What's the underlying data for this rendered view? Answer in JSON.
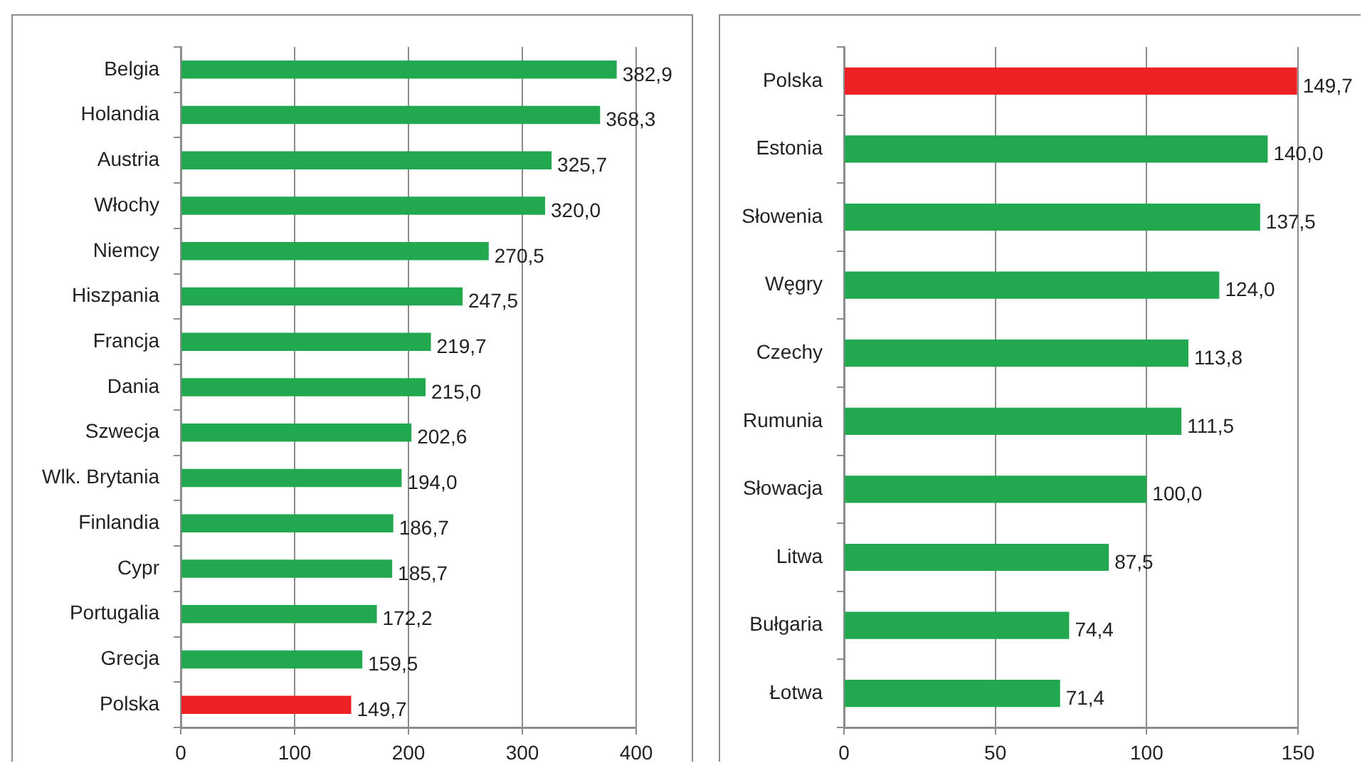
{
  "chart_data": [
    {
      "type": "bar",
      "orientation": "horizontal",
      "categories": [
        "Belgia",
        "Holandia",
        "Austria",
        "Włochy",
        "Niemcy",
        "Hiszpania",
        "Francja",
        "Dania",
        "Szwecja",
        "Wlk. Brytania",
        "Finlandia",
        "Cypr",
        "Portugalia",
        "Grecja",
        "Polska"
      ],
      "values": [
        382.9,
        368.3,
        325.7,
        320.0,
        270.5,
        247.5,
        219.7,
        215.0,
        202.6,
        194.0,
        186.7,
        185.7,
        172.2,
        159.5,
        149.7
      ],
      "colors": [
        "#22a84f",
        "#22a84f",
        "#22a84f",
        "#22a84f",
        "#22a84f",
        "#22a84f",
        "#22a84f",
        "#22a84f",
        "#22a84f",
        "#22a84f",
        "#22a84f",
        "#22a84f",
        "#22a84f",
        "#22a84f",
        "#ed2124"
      ],
      "value_labels": [
        "382,9",
        "368,3",
        "325,7",
        "320,0",
        "270,5",
        "247,5",
        "219,7",
        "215,0",
        "202,6",
        "194,0",
        "186,7",
        "185,7",
        "172,2",
        "159,5",
        "149,7"
      ],
      "xlim": [
        0,
        400
      ],
      "xticks": [
        0,
        100,
        200,
        300,
        400
      ],
      "grid": "x"
    },
    {
      "type": "bar",
      "orientation": "horizontal",
      "categories": [
        "Polska",
        "Estonia",
        "Słowenia",
        "Węgry",
        "Czechy",
        "Rumunia",
        "Słowacja",
        "Litwa",
        "Bułgaria",
        "Łotwa"
      ],
      "values": [
        149.7,
        140.0,
        137.5,
        124.0,
        113.8,
        111.5,
        100.0,
        87.5,
        74.4,
        71.4
      ],
      "colors": [
        "#ed2124",
        "#22a84f",
        "#22a84f",
        "#22a84f",
        "#22a84f",
        "#22a84f",
        "#22a84f",
        "#22a84f",
        "#22a84f",
        "#22a84f"
      ],
      "value_labels": [
        "149,7",
        "140,0",
        "137,5",
        "124,0",
        "113,8",
        "111,5",
        "100,0",
        "87,5",
        "74,4",
        "71,4"
      ],
      "xlim": [
        0,
        150
      ],
      "xticks": [
        0,
        50,
        100,
        150
      ],
      "grid": "x"
    }
  ]
}
